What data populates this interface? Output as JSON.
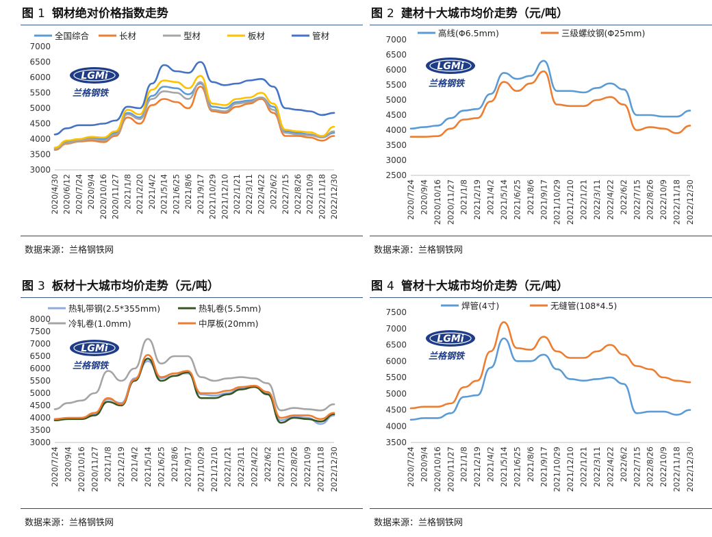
{
  "source_label": "数据来源：兰格钢铁网",
  "logo": {
    "mark": "LGMi",
    "text": "兰格钢铁"
  },
  "colors": {
    "light_blue": "#5b9bd5",
    "orange": "#ed7d31",
    "gray": "#a5a5a5",
    "yellow": "#ffc000",
    "dark_blue": "#4472c4",
    "steel_gray": "#8faadc",
    "dark_green": "#375623"
  },
  "chart_data": [
    {
      "id": "fig1",
      "type": "line",
      "figure_label": "图",
      "figure_number": "1",
      "title": "钢材绝对价格指数走势",
      "ylim": [
        3000,
        7000
      ],
      "yticks": [
        3000,
        3500,
        4000,
        4500,
        5000,
        5500,
        6000,
        6500,
        7000
      ],
      "categories": [
        "2020/4/30",
        "2020/6/12",
        "2020/7/24",
        "2020/9/4",
        "2020/10/16",
        "2020/11/27",
        "2021/1/8",
        "2021/2/20",
        "2021/4/2",
        "2021/5/14",
        "2021/6/25",
        "2021/8/6",
        "2021/9/17",
        "2021/10/29",
        "2021/12/10",
        "2022/1/21",
        "2022/3/11",
        "2022/4/22",
        "2022/6/2",
        "2022/7/15",
        "2022/8/26",
        "2022/10/9",
        "2022/11/18",
        "2022/12/30"
      ],
      "series": [
        {
          "name": "全国综合",
          "color": "#5b9bd5",
          "values": [
            3700,
            3900,
            3980,
            4030,
            4000,
            4200,
            4850,
            4700,
            5400,
            5700,
            5650,
            5450,
            5800,
            5050,
            5000,
            5200,
            5250,
            5350,
            5050,
            4250,
            4200,
            4150,
            4050,
            4200
          ]
        },
        {
          "name": "长材",
          "color": "#ed7d31",
          "values": [
            3650,
            3850,
            3920,
            3950,
            3900,
            4100,
            4700,
            4500,
            5100,
            5300,
            5200,
            5000,
            5700,
            4900,
            4850,
            5050,
            5150,
            5300,
            4850,
            4100,
            4100,
            4050,
            3950,
            4100
          ]
        },
        {
          "name": "型材",
          "color": "#a5a5a5",
          "values": [
            3680,
            3870,
            3950,
            4000,
            3950,
            4150,
            4800,
            4650,
            5300,
            5550,
            5500,
            5300,
            5850,
            4950,
            4900,
            5150,
            5200,
            5350,
            4950,
            4200,
            4150,
            4120,
            4050,
            4250
          ]
        },
        {
          "name": "板材",
          "color": "#ffc000",
          "values": [
            3720,
            3950,
            4000,
            4070,
            4050,
            4250,
            4950,
            4800,
            5600,
            5900,
            5850,
            5650,
            6050,
            5150,
            5100,
            5300,
            5350,
            5500,
            5150,
            4300,
            4250,
            4220,
            4100,
            4400
          ]
        },
        {
          "name": "管材",
          "color": "#4472c4",
          "values": [
            4150,
            4350,
            4450,
            4450,
            4500,
            4600,
            5050,
            5000,
            5800,
            6400,
            6200,
            6150,
            6500,
            5850,
            5750,
            5800,
            5900,
            5950,
            5700,
            5000,
            4950,
            4900,
            4780,
            4850
          ]
        }
      ]
    },
    {
      "id": "fig2",
      "type": "line",
      "figure_label": "图",
      "figure_number": "2",
      "title": "建材十大城市均价走势（元/吨）",
      "ylim": [
        2500,
        7000
      ],
      "yticks": [
        2500,
        3000,
        3500,
        4000,
        4500,
        5000,
        5500,
        6000,
        6500,
        7000
      ],
      "categories": [
        "2020/7/24",
        "2020/9/4",
        "2020/10/16",
        "2020/11/27",
        "2021/1/8",
        "2021/2/19",
        "2021/4/2",
        "2021/5/14",
        "2021/6/25",
        "2021/8/6",
        "2021/9/17",
        "2021/10/29",
        "2021/12/10",
        "2022/1/21",
        "2022/3/11",
        "2022/4/22",
        "2022/6/2",
        "2022/7/15",
        "2022/8/26",
        "2022/10/9",
        "2022/11/18",
        "2022/12/30"
      ],
      "series": [
        {
          "name": "高线(Φ6.5mm)",
          "color": "#5b9bd5",
          "values": [
            4050,
            4100,
            4150,
            4400,
            4650,
            4700,
            5200,
            5900,
            5700,
            5800,
            6300,
            5300,
            5300,
            5250,
            5400,
            5550,
            5350,
            4500,
            4500,
            4450,
            4450,
            4650
          ]
        },
        {
          "name": "三级螺纹钢(Φ25mm)",
          "color": "#ed7d31",
          "values": [
            3780,
            3780,
            3800,
            4050,
            4350,
            4400,
            4950,
            5600,
            5300,
            5550,
            5950,
            4850,
            4800,
            4800,
            5000,
            5100,
            4850,
            4000,
            4100,
            4050,
            3900,
            4150
          ]
        }
      ]
    },
    {
      "id": "fig3",
      "type": "line",
      "figure_label": "图",
      "figure_number": "3",
      "title": "板材十大城市均价走势（元/吨）",
      "ylim": [
        3000,
        8000
      ],
      "yticks": [
        3000,
        3500,
        4000,
        4500,
        5000,
        5500,
        6000,
        6500,
        7000,
        7500,
        8000
      ],
      "categories": [
        "2020/7/24",
        "2020/9/4",
        "2020/10/16",
        "2020/11/27",
        "2021/1/8",
        "2021/2/19",
        "2021/4/2",
        "2021/5/14",
        "2021/6/25",
        "2021/8/6",
        "2021/9/17",
        "2021/10/29",
        "2021/12/10",
        "2022/1/21",
        "2022/3/11",
        "2022/4/22",
        "2022/6/2",
        "2022/7/15",
        "2022/8/26",
        "2022/10/9",
        "2022/11/18",
        "2022/12/30"
      ],
      "series": [
        {
          "name": "热轧带钢(2.5*355mm)",
          "color": "#8faadc",
          "values": [
            3950,
            3980,
            4000,
            4150,
            4750,
            4600,
            5600,
            6300,
            5600,
            5800,
            5800,
            4950,
            4900,
            5000,
            5200,
            5300,
            5000,
            3900,
            4050,
            4000,
            3750,
            4100
          ]
        },
        {
          "name": "热轧卷(5.5mm)",
          "color": "#375623",
          "values": [
            3900,
            3950,
            3950,
            4100,
            4650,
            4500,
            5500,
            6400,
            5500,
            5700,
            5850,
            4800,
            4800,
            4950,
            5150,
            5250,
            4950,
            3800,
            4000,
            3950,
            3850,
            4150
          ]
        },
        {
          "name": "冷轧卷(1.0mm)",
          "color": "#a5a5a5",
          "values": [
            4350,
            4600,
            4700,
            5000,
            5900,
            5500,
            6000,
            7200,
            6200,
            6500,
            6500,
            5650,
            5500,
            5600,
            5650,
            5600,
            5400,
            4300,
            4400,
            4350,
            4300,
            4550
          ]
        },
        {
          "name": "中厚板(20mm)",
          "color": "#ed7d31",
          "values": [
            3950,
            4000,
            4000,
            4200,
            4800,
            4550,
            5550,
            6550,
            5650,
            5800,
            5900,
            5000,
            5000,
            5100,
            5250,
            5300,
            5050,
            4000,
            4100,
            4100,
            3950,
            4200
          ]
        }
      ]
    },
    {
      "id": "fig4",
      "type": "line",
      "figure_label": "图",
      "figure_number": "4",
      "title": "管材十大城市均价走势（元/吨）",
      "ylim": [
        3500,
        7500
      ],
      "yticks": [
        3500,
        4000,
        4500,
        5000,
        5500,
        6000,
        6500,
        7000,
        7500
      ],
      "categories": [
        "2020/7/24",
        "2020/9/4",
        "2020/10/16",
        "2020/11/27",
        "2021/1/8",
        "2021/2/19",
        "2021/4/2",
        "2021/5/14",
        "2021/6/25",
        "2021/8/6",
        "2021/9/17",
        "2021/10/29",
        "2021/12/10",
        "2022/1/21",
        "2022/3/11",
        "2022/4/22",
        "2022/6/2",
        "2022/7/15",
        "2022/8/26",
        "2022/10/9",
        "2022/11/18",
        "2022/12/30"
      ],
      "series": [
        {
          "name": "焊管(4寸)",
          "color": "#5b9bd5",
          "values": [
            4200,
            4250,
            4250,
            4400,
            4900,
            4950,
            5800,
            6700,
            6000,
            6000,
            6200,
            5750,
            5450,
            5400,
            5450,
            5500,
            5300,
            4400,
            4450,
            4450,
            4350,
            4500
          ]
        },
        {
          "name": "无缝管(108*4.5)",
          "color": "#ed7d31",
          "values": [
            4550,
            4600,
            4600,
            4700,
            5200,
            5400,
            6300,
            7200,
            6400,
            6350,
            6750,
            6300,
            6100,
            6100,
            6300,
            6500,
            6200,
            5850,
            5750,
            5500,
            5400,
            5350
          ]
        }
      ]
    }
  ]
}
